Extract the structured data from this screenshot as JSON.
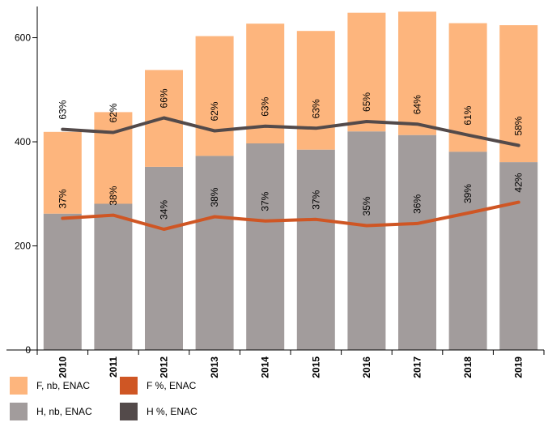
{
  "chart_data": {
    "type": "bar",
    "stacked": true,
    "categories": [
      "2010",
      "2011",
      "2012",
      "2013",
      "2014",
      "2015",
      "2016",
      "2017",
      "2018",
      "2019"
    ],
    "ylim": [
      0,
      660
    ],
    "yticks": [
      0,
      200,
      400,
      600
    ],
    "grid": false,
    "legend_position": "bottom-left",
    "series": [
      {
        "name": "H, nb, ENAC",
        "kind": "bar",
        "color": "#a29c9c",
        "values": [
          262,
          281,
          352,
          373,
          397,
          385,
          420,
          413,
          381,
          361
        ]
      },
      {
        "name": "F, nb, ENAC",
        "kind": "bar",
        "color": "#fdb57d",
        "values": [
          157,
          176,
          186,
          230,
          230,
          228,
          228,
          237,
          247,
          263
        ]
      },
      {
        "name": "H %, ENAC",
        "kind": "line",
        "color": "#534a4a",
        "values": [
          424,
          418,
          446,
          421,
          430,
          426,
          439,
          434,
          413,
          393
        ],
        "labels": [
          "63%",
          "62%",
          "66%",
          "62%",
          "63%",
          "63%",
          "65%",
          "64%",
          "61%",
          "58%"
        ]
      },
      {
        "name": "F %, ENAC",
        "kind": "line",
        "color": "#cf5624",
        "values": [
          253,
          259,
          232,
          256,
          248,
          251,
          239,
          243,
          263,
          284
        ],
        "labels": [
          "37%",
          "38%",
          "34%",
          "38%",
          "37%",
          "37%",
          "35%",
          "36%",
          "39%",
          "42%"
        ]
      }
    ],
    "legend": [
      {
        "name": "F, nb, ENAC",
        "color": "#fdb57d"
      },
      {
        "name": "F %, ENAC",
        "color": "#cf5624"
      },
      {
        "name": "H, nb, ENAC",
        "color": "#a29c9c"
      },
      {
        "name": "H %, ENAC",
        "color": "#534a4a"
      }
    ]
  }
}
